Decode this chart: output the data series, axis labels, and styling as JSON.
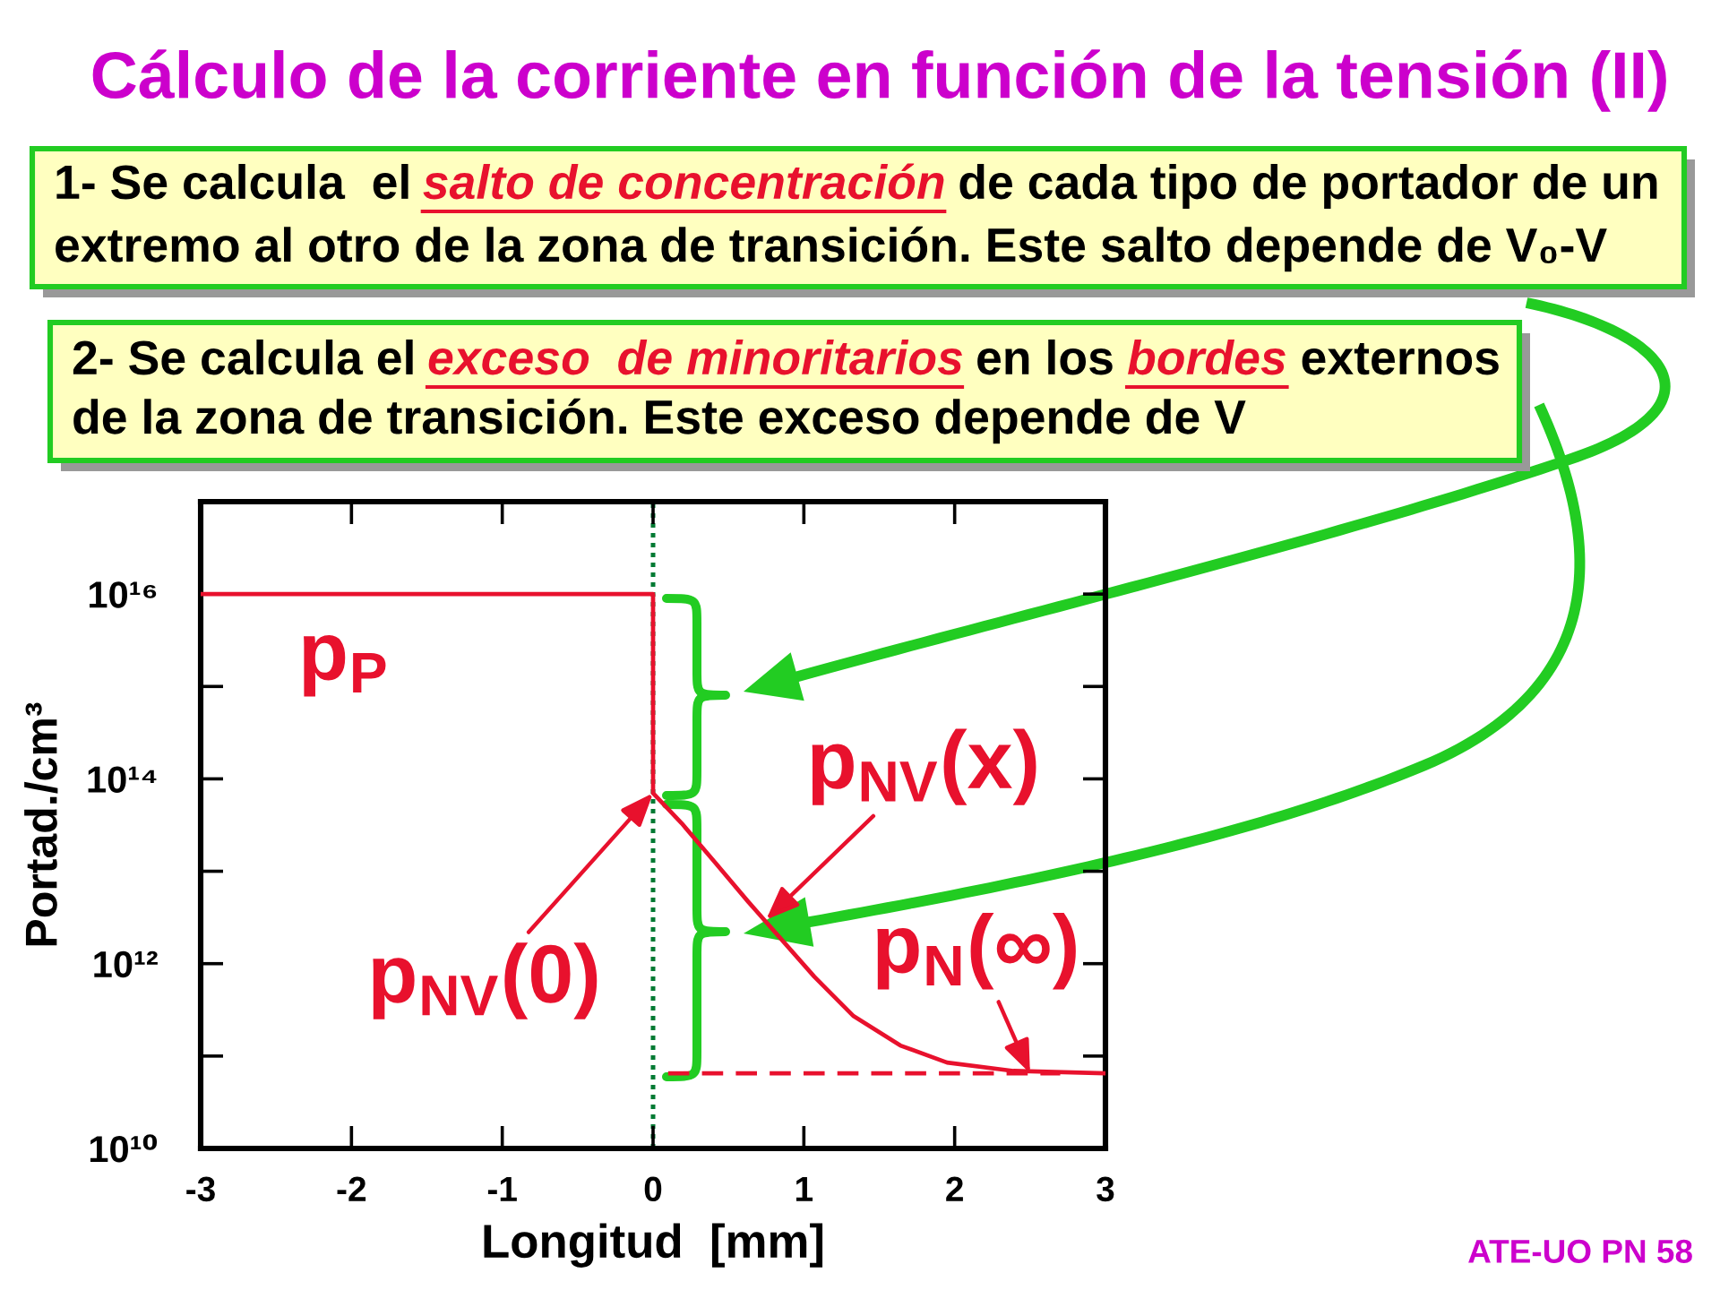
{
  "chart_data": {
    "type": "line",
    "title": "Cálculo de la corriente en función de la tensión (II)",
    "xlabel": "Longitud  [mm]",
    "ylabel": "Portad./cm³",
    "log": true,
    "xlim": [
      -3,
      3
    ],
    "xticks": [
      -3,
      -2,
      -1,
      0,
      1,
      2,
      3
    ],
    "ylim": [
      10000000000.0,
      1e+17
    ],
    "yticks": [
      {
        "value": 10000000000.0,
        "label": "10¹⁰"
      },
      {
        "value": 100000000000.0,
        "label": null
      },
      {
        "value": 1000000000000.0,
        "label": "10¹²"
      },
      {
        "value": 10000000000000.0,
        "label": null
      },
      {
        "value": 100000000000000.0,
        "label": "10¹⁴"
      },
      {
        "value": 1000000000000000.0,
        "label": null
      },
      {
        "value": 1e+16,
        "label": "10¹⁶"
      }
    ],
    "series": [
      {
        "color": "#e8112d",
        "line_style": "solid",
        "x": [
          -3,
          0,
          0,
          0.19,
          0.41,
          0.63,
          1.07,
          1.33,
          1.64,
          1.95,
          2.39,
          3
        ],
        "values": [
          1e+16,
          1e+16,
          70000000000000.0,
          33000000000000.0,
          12500000000000.0,
          4700000000000.0,
          720000000000.0,
          270000000000.0,
          130000000000.0,
          85000000000.0,
          69000000000.0,
          65000000000.0
        ]
      },
      {
        "color": "#e8112d",
        "line_style": "dashed",
        "x": [
          0.1,
          2.7
        ],
        "values": [
          65000000000.0,
          65000000000.0
        ]
      }
    ],
    "ref_lines": [
      {
        "axis": "x",
        "value": 0,
        "color": "#007a33",
        "line_style": "dotted"
      }
    ],
    "annotations": [
      "1- Se calcula  el",
      "salto de concentración",
      "de cada tipo de portador de un",
      "extremo al otro de la zona de transición. Este salto depende de V₀-V",
      "2- Se calcula el",
      "exceso  de minoritarios",
      "en los",
      "bordes",
      "externos",
      "de la zona de transición. Este exceso depende de V",
      {
        "text": "p$_{P}$",
        "x": -2,
        "y": 1e+16
      },
      {
        "text": "p$_{NV}$(x)",
        "x": 0.75,
        "y": 3000000000000.0
      },
      {
        "text": "p$_{NV}$(0)",
        "x": 0,
        "y": 70000000000000.0
      },
      {
        "text": "p$_{N}$(∞)",
        "x": 2.5,
        "y": 65000000000.0
      },
      "ATE-UO PN 58"
    ]
  }
}
